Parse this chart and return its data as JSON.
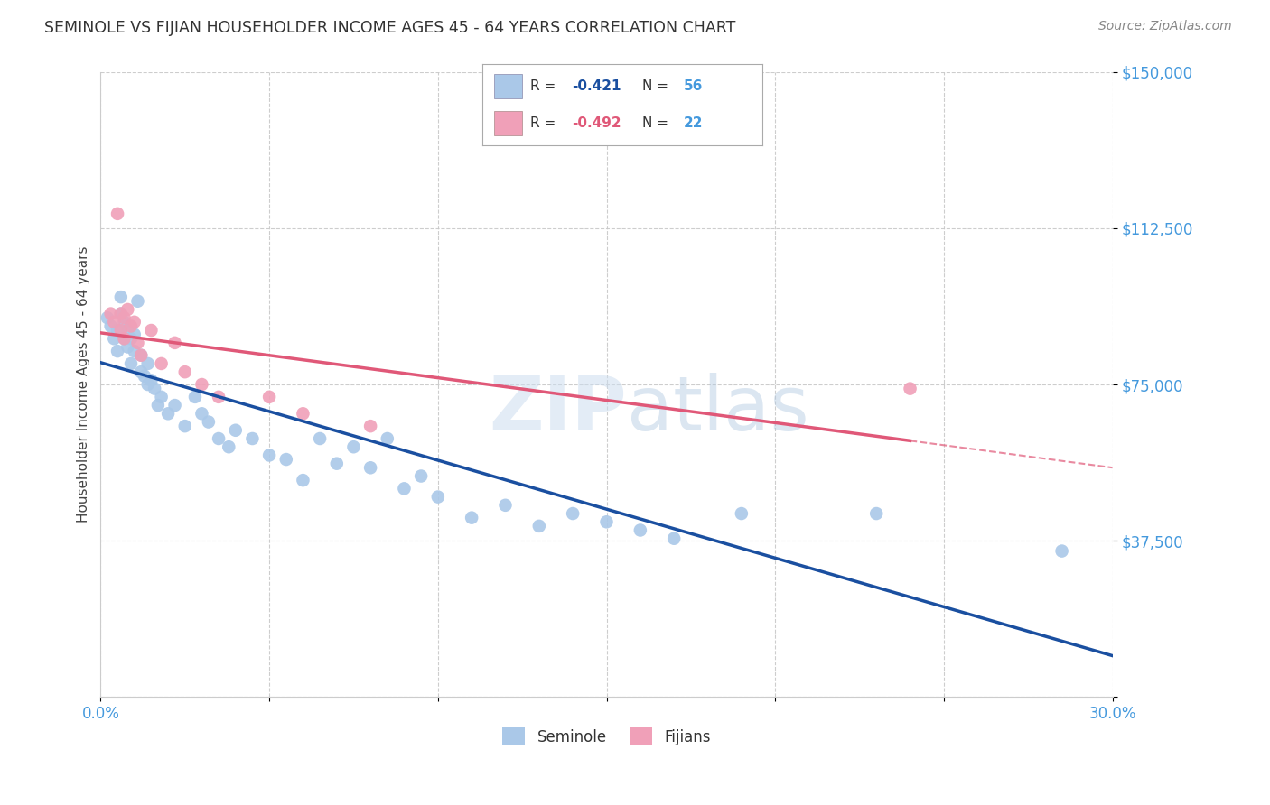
{
  "title": "SEMINOLE VS FIJIAN HOUSEHOLDER INCOME AGES 45 - 64 YEARS CORRELATION CHART",
  "source": "Source: ZipAtlas.com",
  "ylabel": "Householder Income Ages 45 - 64 years",
  "xlim": [
    0.0,
    0.3
  ],
  "ylim": [
    0,
    150000
  ],
  "yticks": [
    0,
    37500,
    75000,
    112500,
    150000
  ],
  "ytick_labels": [
    "",
    "$37,500",
    "$75,000",
    "$112,500",
    "$150,000"
  ],
  "xticks": [
    0.0,
    0.05,
    0.1,
    0.15,
    0.2,
    0.25,
    0.3
  ],
  "xtick_labels": [
    "0.0%",
    "",
    "",
    "",
    "",
    "",
    "30.0%"
  ],
  "background_color": "#ffffff",
  "grid_color": "#c8c8c8",
  "seminole_color": "#aac8e8",
  "fijian_color": "#f0a0b8",
  "seminole_line_color": "#1a4fa0",
  "fijian_line_color": "#e05878",
  "title_color": "#333333",
  "axis_label_color": "#444444",
  "tick_color": "#4499dd",
  "R_seminole": -0.421,
  "N_seminole": 56,
  "R_fijian": -0.492,
  "N_fijian": 22,
  "watermark_color": "#ccddef",
  "seminole_x": [
    0.002,
    0.003,
    0.004,
    0.005,
    0.005,
    0.006,
    0.006,
    0.007,
    0.007,
    0.008,
    0.008,
    0.009,
    0.009,
    0.01,
    0.01,
    0.011,
    0.012,
    0.012,
    0.013,
    0.014,
    0.014,
    0.015,
    0.016,
    0.017,
    0.018,
    0.02,
    0.022,
    0.025,
    0.028,
    0.03,
    0.032,
    0.035,
    0.038,
    0.04,
    0.045,
    0.05,
    0.055,
    0.06,
    0.065,
    0.07,
    0.075,
    0.08,
    0.085,
    0.09,
    0.095,
    0.1,
    0.11,
    0.12,
    0.13,
    0.14,
    0.15,
    0.16,
    0.17,
    0.19,
    0.23,
    0.285
  ],
  "seminole_y": [
    91000,
    89000,
    86000,
    83000,
    88000,
    92000,
    96000,
    86000,
    90000,
    84000,
    88000,
    80000,
    86000,
    83000,
    87000,
    95000,
    82000,
    78000,
    77000,
    75000,
    80000,
    76000,
    74000,
    70000,
    72000,
    68000,
    70000,
    65000,
    72000,
    68000,
    66000,
    62000,
    60000,
    64000,
    62000,
    58000,
    57000,
    52000,
    62000,
    56000,
    60000,
    55000,
    62000,
    50000,
    53000,
    48000,
    43000,
    46000,
    41000,
    44000,
    42000,
    40000,
    38000,
    44000,
    44000,
    35000
  ],
  "fijian_x": [
    0.003,
    0.004,
    0.005,
    0.006,
    0.006,
    0.007,
    0.007,
    0.008,
    0.009,
    0.01,
    0.011,
    0.012,
    0.015,
    0.018,
    0.022,
    0.025,
    0.03,
    0.035,
    0.05,
    0.06,
    0.08,
    0.24
  ],
  "fijian_y": [
    92000,
    90000,
    116000,
    88000,
    92000,
    91000,
    86000,
    93000,
    89000,
    90000,
    85000,
    82000,
    88000,
    80000,
    85000,
    78000,
    75000,
    72000,
    72000,
    68000,
    65000,
    74000
  ]
}
